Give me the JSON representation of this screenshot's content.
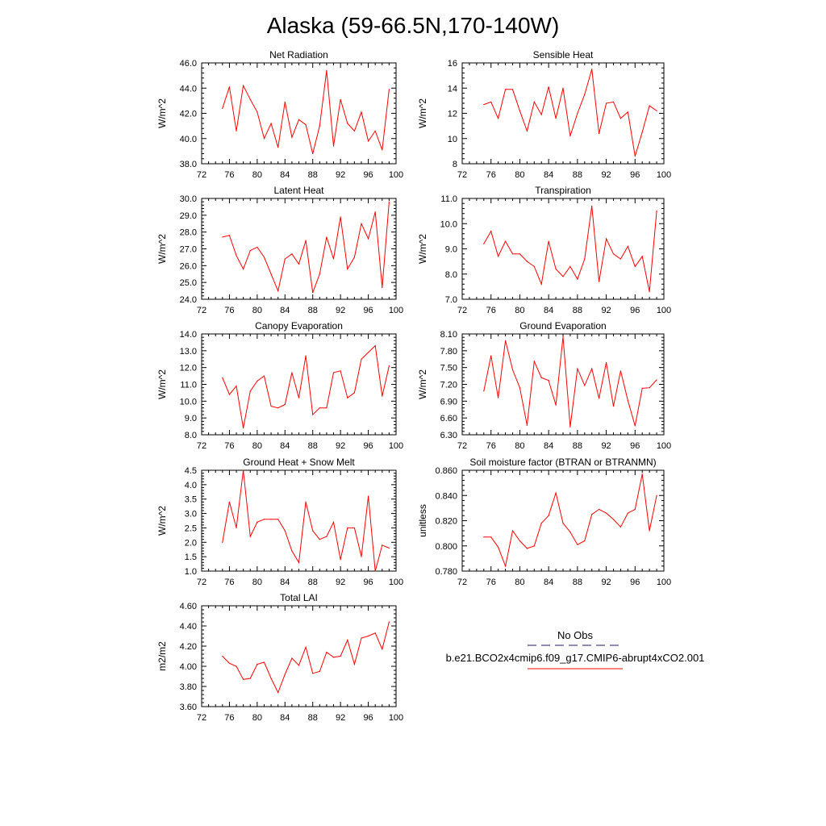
{
  "title": "Alaska (59-66.5N,170-140W)",
  "legend": {
    "obs_label": "No Obs",
    "model_label": "b.e21.BCO2x4cmip6.f09_g17.CMIP6-abrupt4xCO2.001",
    "obs_color": "#1a1a6e",
    "model_color": "#ff0000",
    "placement": "bottom-right"
  },
  "colors": {
    "line": "#ff0000",
    "axis": "#000000"
  },
  "chart_data": [
    {
      "type": "line",
      "title": "Net Radiation",
      "ylabel": "W/m^2",
      "xlim": [
        72,
        100
      ],
      "ylim": [
        38.0,
        46.0
      ],
      "xticks": [
        "72",
        "76",
        "80",
        "84",
        "88",
        "92",
        "96",
        "100"
      ],
      "yticks": [
        "38.0",
        "40.0",
        "42.0",
        "44.0",
        "46.0"
      ],
      "x": [
        75,
        76,
        77,
        78,
        79,
        80,
        81,
        82,
        83,
        84,
        85,
        86,
        87,
        88,
        89,
        90,
        91,
        92,
        93,
        94,
        95,
        96,
        97,
        98,
        99
      ],
      "series": [
        {
          "values": [
            42.4,
            44.1,
            40.6,
            44.2,
            43.1,
            42.1,
            40.0,
            41.2,
            39.3,
            42.9,
            40.1,
            41.5,
            41.1,
            38.8,
            41.0,
            45.4,
            39.4,
            43.1,
            41.2,
            40.6,
            42.1,
            39.8,
            40.6,
            39.1,
            43.9
          ]
        }
      ]
    },
    {
      "type": "line",
      "title": "Sensible Heat",
      "ylabel": "W/m^2",
      "xlim": [
        72,
        100
      ],
      "ylim": [
        8,
        16
      ],
      "xticks": [
        "72",
        "76",
        "80",
        "84",
        "88",
        "92",
        "96",
        "100"
      ],
      "yticks": [
        "8",
        "10",
        "12",
        "14",
        "16"
      ],
      "x": [
        75,
        76,
        77,
        78,
        79,
        80,
        81,
        82,
        83,
        84,
        85,
        86,
        87,
        88,
        89,
        90,
        91,
        92,
        93,
        94,
        95,
        96,
        97,
        98,
        99
      ],
      "series": [
        {
          "values": [
            12.7,
            12.9,
            11.6,
            13.9,
            13.9,
            12.2,
            10.6,
            12.9,
            11.9,
            14.1,
            11.6,
            14.0,
            10.2,
            12.0,
            13.5,
            15.5,
            10.4,
            12.8,
            12.9,
            11.6,
            12.1,
            8.6,
            10.5,
            12.6,
            12.2
          ]
        }
      ]
    },
    {
      "type": "line",
      "title": "Latent Heat",
      "ylabel": "W/m^2",
      "xlim": [
        72,
        100
      ],
      "ylim": [
        24.0,
        30.0
      ],
      "xticks": [
        "72",
        "76",
        "80",
        "84",
        "88",
        "92",
        "96",
        "100"
      ],
      "yticks": [
        "24.0",
        "25.0",
        "26.0",
        "27.0",
        "28.0",
        "29.0",
        "30.0"
      ],
      "x": [
        75,
        76,
        77,
        78,
        79,
        80,
        81,
        82,
        83,
        84,
        85,
        86,
        87,
        88,
        89,
        90,
        91,
        92,
        93,
        94,
        95,
        96,
        97,
        98,
        99
      ],
      "series": [
        {
          "values": [
            27.7,
            27.8,
            26.6,
            25.8,
            26.9,
            27.1,
            26.5,
            25.5,
            24.5,
            26.4,
            26.7,
            26.1,
            27.5,
            24.4,
            25.5,
            27.7,
            26.4,
            28.9,
            25.8,
            26.5,
            28.5,
            27.6,
            29.2,
            24.7,
            29.8
          ]
        }
      ]
    },
    {
      "type": "line",
      "title": "Transpiration",
      "ylabel": "W/m^2",
      "xlim": [
        72,
        100
      ],
      "ylim": [
        7.0,
        11.0
      ],
      "xticks": [
        "72",
        "76",
        "80",
        "84",
        "88",
        "92",
        "96",
        "100"
      ],
      "yticks": [
        "7.0",
        "8.0",
        "9.0",
        "10.0",
        "11.0"
      ],
      "x": [
        75,
        76,
        77,
        78,
        79,
        80,
        81,
        82,
        83,
        84,
        85,
        86,
        87,
        88,
        89,
        90,
        91,
        92,
        93,
        94,
        95,
        96,
        97,
        98,
        99
      ],
      "series": [
        {
          "values": [
            9.2,
            9.7,
            8.7,
            9.3,
            8.8,
            8.8,
            8.5,
            8.3,
            7.6,
            9.3,
            8.2,
            7.9,
            8.3,
            7.8,
            8.6,
            10.7,
            7.7,
            9.4,
            8.8,
            8.6,
            9.1,
            8.3,
            8.7,
            7.3,
            10.5
          ]
        }
      ]
    },
    {
      "type": "line",
      "title": "Canopy Evaporation",
      "ylabel": "W/m^2",
      "xlim": [
        72,
        100
      ],
      "ylim": [
        8.0,
        14.0
      ],
      "xticks": [
        "72",
        "76",
        "80",
        "84",
        "88",
        "92",
        "96",
        "100"
      ],
      "yticks": [
        "8.0",
        "9.0",
        "10.0",
        "11.0",
        "12.0",
        "13.0",
        "14.0"
      ],
      "x": [
        75,
        76,
        77,
        78,
        79,
        80,
        81,
        82,
        83,
        84,
        85,
        86,
        87,
        88,
        89,
        90,
        91,
        92,
        93,
        94,
        95,
        96,
        97,
        98,
        99
      ],
      "series": [
        {
          "values": [
            11.4,
            10.4,
            10.9,
            8.4,
            10.6,
            11.2,
            11.5,
            9.7,
            9.6,
            9.8,
            11.7,
            10.2,
            12.7,
            9.2,
            9.6,
            9.6,
            11.7,
            11.8,
            10.2,
            10.5,
            12.5,
            12.9,
            13.3,
            10.3,
            12.1
          ]
        }
      ]
    },
    {
      "type": "line",
      "title": "Ground Evaporation",
      "ylabel": "W/m^2",
      "xlim": [
        72,
        100
      ],
      "ylim": [
        6.3,
        8.1
      ],
      "xticks": [
        "72",
        "76",
        "80",
        "84",
        "88",
        "92",
        "96",
        "100"
      ],
      "yticks": [
        "6.30",
        "6.60",
        "6.90",
        "7.20",
        "7.50",
        "7.80",
        "8.10"
      ],
      "x": [
        75,
        76,
        77,
        78,
        79,
        80,
        81,
        82,
        83,
        84,
        85,
        86,
        87,
        88,
        89,
        90,
        91,
        92,
        93,
        94,
        95,
        96,
        97,
        98,
        99
      ],
      "series": [
        {
          "values": [
            7.08,
            7.71,
            6.96,
            7.98,
            7.46,
            7.14,
            6.47,
            7.61,
            7.32,
            7.27,
            6.83,
            8.05,
            6.44,
            7.48,
            7.18,
            7.48,
            6.95,
            7.59,
            6.81,
            7.44,
            6.91,
            6.46,
            7.13,
            7.14,
            7.28
          ]
        }
      ]
    },
    {
      "type": "line",
      "title": "Ground Heat + Snow Melt",
      "ylabel": "W/m^2",
      "xlim": [
        72,
        100
      ],
      "ylim": [
        1.0,
        4.5
      ],
      "xticks": [
        "72",
        "76",
        "80",
        "84",
        "88",
        "92",
        "96",
        "100"
      ],
      "yticks": [
        "1.0",
        "1.5",
        "2.0",
        "2.5",
        "3.0",
        "3.5",
        "4.0",
        "4.5"
      ],
      "x": [
        75,
        76,
        77,
        78,
        79,
        80,
        81,
        82,
        83,
        84,
        85,
        86,
        87,
        88,
        89,
        90,
        91,
        92,
        93,
        94,
        95,
        96,
        97,
        98,
        99
      ],
      "series": [
        {
          "values": [
            2.0,
            3.4,
            2.5,
            4.5,
            2.2,
            2.7,
            2.8,
            2.8,
            2.8,
            2.4,
            1.7,
            1.3,
            3.4,
            2.4,
            2.1,
            2.2,
            2.7,
            1.4,
            2.5,
            2.5,
            1.5,
            3.6,
            1.0,
            1.9,
            1.8
          ]
        }
      ]
    },
    {
      "type": "line",
      "title": "Soil moisture factor (BTRAN or BTRANMN)",
      "ylabel": "unitless",
      "xlim": [
        72,
        100
      ],
      "ylim": [
        0.78,
        0.86
      ],
      "xticks": [
        "72",
        "76",
        "80",
        "84",
        "88",
        "92",
        "96",
        "100"
      ],
      "yticks": [
        "0.780",
        "0.800",
        "0.820",
        "0.840",
        "0.860"
      ],
      "x": [
        75,
        76,
        77,
        78,
        79,
        80,
        81,
        82,
        83,
        84,
        85,
        86,
        87,
        88,
        89,
        90,
        91,
        92,
        93,
        94,
        95,
        96,
        97,
        98,
        99
      ],
      "series": [
        {
          "values": [
            0.807,
            0.807,
            0.799,
            0.784,
            0.812,
            0.804,
            0.798,
            0.8,
            0.818,
            0.824,
            0.842,
            0.818,
            0.811,
            0.801,
            0.804,
            0.825,
            0.829,
            0.826,
            0.821,
            0.815,
            0.826,
            0.829,
            0.857,
            0.812,
            0.84
          ]
        }
      ]
    },
    {
      "type": "line",
      "title": "Total LAI",
      "ylabel": "m2/m2",
      "xlim": [
        72,
        100
      ],
      "ylim": [
        3.6,
        4.6
      ],
      "xticks": [
        "72",
        "76",
        "80",
        "84",
        "88",
        "92",
        "96",
        "100"
      ],
      "yticks": [
        "3.60",
        "3.80",
        "4.00",
        "4.20",
        "4.40",
        "4.60"
      ],
      "x": [
        75,
        76,
        77,
        78,
        79,
        80,
        81,
        82,
        83,
        84,
        85,
        86,
        87,
        88,
        89,
        90,
        91,
        92,
        93,
        94,
        95,
        96,
        97,
        98,
        99
      ],
      "series": [
        {
          "values": [
            4.1,
            4.03,
            4.0,
            3.87,
            3.88,
            4.02,
            4.04,
            3.88,
            3.74,
            3.92,
            4.08,
            4.01,
            4.19,
            3.93,
            3.95,
            4.14,
            4.09,
            4.1,
            4.26,
            4.02,
            4.28,
            4.3,
            4.33,
            4.17,
            4.44
          ]
        }
      ]
    }
  ]
}
